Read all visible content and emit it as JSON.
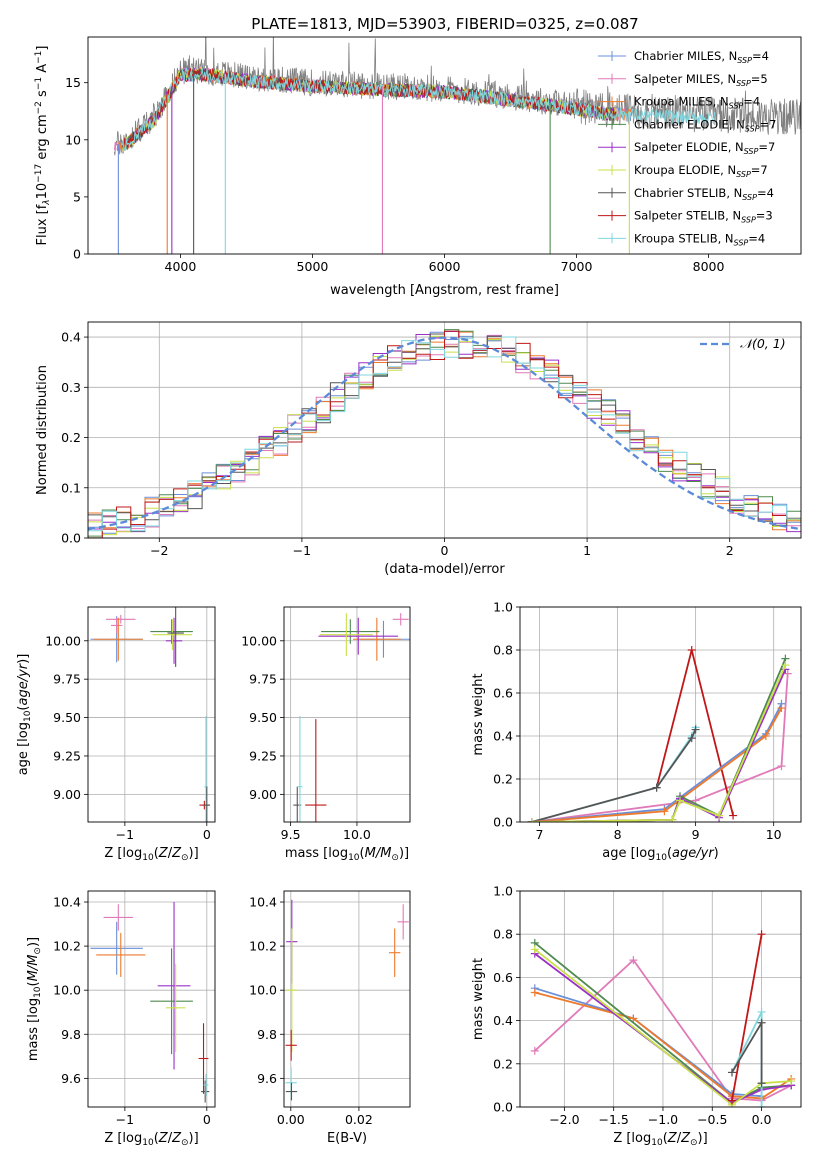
{
  "figure": {
    "title": "PLATE=1813, MJD=53903, FIBERID=0325, z=0.087"
  },
  "models": [
    {
      "name": "Chabrier MILES",
      "nssp": "4",
      "color": "#6a8fd8"
    },
    {
      "name": "Salpeter MILES",
      "nssp": "5",
      "color": "#e07ab8"
    },
    {
      "name": "Kroupa MILES",
      "nssp": "4",
      "color": "#ee7a2c"
    },
    {
      "name": "Chabrier ELODIE",
      "nssp": "7",
      "color": "#4f8a4f"
    },
    {
      "name": "Salpeter ELODIE",
      "nssp": "7",
      "color": "#9b30c8"
    },
    {
      "name": "Kroupa ELODIE",
      "nssp": "7",
      "color": "#c9e04a"
    },
    {
      "name": "Chabrier STELIB",
      "nssp": "4",
      "color": "#555555"
    },
    {
      "name": "Salpeter STELIB",
      "nssp": "3",
      "color": "#c01818"
    },
    {
      "name": "Kroupa STELIB",
      "nssp": "4",
      "color": "#7fd6de"
    }
  ],
  "legend_nssp_label": "N",
  "legend_nssp_sub": "SSP",
  "chart_data": [
    {
      "id": "spectrum",
      "type": "line",
      "xlabel": "wavelength [Angstrom, rest frame]",
      "ylabel": "Flux [f",
      "xlim": [
        3300,
        8700
      ],
      "ylim": [
        0,
        19
      ],
      "xticks": [
        4000,
        5000,
        6000,
        7000,
        8000
      ],
      "yticks": [
        0,
        5,
        10,
        15
      ],
      "legend": "upper right",
      "data_color": "#808080",
      "continuum_x": [
        3500,
        3600,
        3800,
        4000,
        4200,
        4500,
        5000,
        5500,
        6000,
        6500,
        7000,
        7200,
        7400,
        8000,
        8500,
        8700
      ],
      "continuum_y": [
        9.5,
        10.0,
        12.0,
        16.0,
        16.0,
        15.5,
        15.0,
        14.7,
        14.5,
        13.8,
        13.0,
        12.6,
        12.5,
        12.2,
        12.0,
        12.0
      ],
      "absorption_lines_x": [
        3530,
        3900,
        3935,
        4100,
        4340,
        5530,
        6800,
        7400
      ]
    },
    {
      "id": "residual-distribution",
      "type": "histogram",
      "xlabel": "(data-model)/error",
      "ylabel": "Normed distribution",
      "xlim": [
        -2.5,
        2.5
      ],
      "ylim": [
        0,
        0.43
      ],
      "xticks": [
        -2,
        -1,
        0,
        1,
        2
      ],
      "yticks": [
        0.0,
        0.1,
        0.2,
        0.3,
        0.4
      ],
      "grid": true,
      "bins": 50,
      "reference_curve": {
        "label": "𝒩(0, 1)",
        "mean": 0,
        "sigma": 1,
        "style": "dashed",
        "color": "#5b8bd8"
      },
      "legend": "upper right"
    },
    {
      "id": "age-vs-Z",
      "type": "errorbar",
      "xlabel": "Z [log",
      "ylabel": "age  [log",
      "xlim": [
        -1.45,
        0.1
      ],
      "ylim": [
        8.82,
        10.22
      ],
      "xticks": [
        -1,
        0
      ],
      "yticks": [
        9.0,
        9.25,
        9.5,
        9.75,
        10.0
      ],
      "grid": true,
      "points": [
        {
          "model": 0,
          "x": -1.1,
          "y": 10.01,
          "xerr": 0.32,
          "yerr": 0.15
        },
        {
          "model": 1,
          "x": -1.05,
          "y": 10.14,
          "xerr": 0.18,
          "yerr": 0.0
        },
        {
          "model": 1,
          "x": -1.1,
          "y": 10.1,
          "xerr": 0.0,
          "yerr": 0.05
        },
        {
          "model": 2,
          "x": -1.08,
          "y": 10.01,
          "xerr": 0.3,
          "yerr": 0.14
        },
        {
          "model": 3,
          "x": -0.43,
          "y": 10.06,
          "xerr": 0.26,
          "yerr": 0.08
        },
        {
          "model": 4,
          "x": -0.4,
          "y": 10.0,
          "xerr": 0.1,
          "yerr": 0.15
        },
        {
          "model": 5,
          "x": -0.42,
          "y": 10.04,
          "xerr": 0.24,
          "yerr": 0.1
        },
        {
          "model": 6,
          "x": -0.38,
          "y": 10.05,
          "xerr": 0.1,
          "yerr": 0.22
        },
        {
          "model": 7,
          "x": -0.03,
          "y": 8.93,
          "xerr": 0.06,
          "yerr": 0.0
        },
        {
          "model": 8,
          "x": -0.01,
          "y": 9.05,
          "xerr": 0.02,
          "yerr": 0.46
        },
        {
          "model": 6,
          "x": 0.0,
          "y": 8.93,
          "xerr": 0.04,
          "yerr": 0.12
        }
      ]
    },
    {
      "id": "age-vs-mass",
      "type": "errorbar",
      "xlabel": "mass [log",
      "ylabel": "",
      "xlim": [
        9.45,
        10.4
      ],
      "ylim": [
        8.82,
        10.22
      ],
      "xticks": [
        9.5,
        10.0
      ],
      "yticks": [
        9.0,
        9.25,
        9.5,
        9.75,
        10.0
      ],
      "grid": true,
      "points": [
        {
          "model": 0,
          "x": 10.2,
          "y": 10.01,
          "xerr": 0.2,
          "yerr": 0.12
        },
        {
          "model": 1,
          "x": 10.33,
          "y": 10.14,
          "xerr": 0.06,
          "yerr": 0.04
        },
        {
          "model": 2,
          "x": 10.15,
          "y": 10.01,
          "xerr": 0.18,
          "yerr": 0.14
        },
        {
          "model": 3,
          "x": 9.95,
          "y": 10.06,
          "xerr": 0.22,
          "yerr": 0.08
        },
        {
          "model": 4,
          "x": 10.01,
          "y": 10.03,
          "xerr": 0.3,
          "yerr": 0.12
        },
        {
          "model": 5,
          "x": 9.92,
          "y": 10.04,
          "xerr": 0.2,
          "yerr": 0.14
        },
        {
          "model": 6,
          "x": 9.55,
          "y": 8.93,
          "xerr": 0.03,
          "yerr": 0.12
        },
        {
          "model": 7,
          "x": 9.69,
          "y": 8.93,
          "xerr": 0.08,
          "yerr": 0.56
        },
        {
          "model": 8,
          "x": 9.57,
          "y": 9.05,
          "xerr": 0.02,
          "yerr": 0.46
        }
      ]
    },
    {
      "id": "mass-weight-vs-age",
      "type": "line",
      "xlabel": "age  [log",
      "ylabel": "mass weight",
      "xlim": [
        6.75,
        10.35
      ],
      "ylim": [
        0,
        1.0
      ],
      "xticks": [
        7,
        8,
        9,
        10
      ],
      "yticks": [
        0.0,
        0.2,
        0.4,
        0.6,
        0.8,
        1.0
      ],
      "grid": true,
      "series": [
        {
          "model": 1,
          "x": [
            6.9,
            9.0,
            10.1,
            10.18
          ],
          "y": [
            0.0,
            0.1,
            0.26,
            0.69
          ]
        },
        {
          "model": 7,
          "x": [
            8.5,
            8.95,
            9.48
          ],
          "y": [
            0.16,
            0.8,
            0.03
          ]
        },
        {
          "model": 8,
          "x": [
            6.9,
            8.5,
            8.95,
            9.0
          ],
          "y": [
            0.0,
            0.16,
            0.4,
            0.44
          ]
        },
        {
          "model": 6,
          "x": [
            6.9,
            8.5,
            8.95,
            9.0
          ],
          "y": [
            0.0,
            0.16,
            0.39,
            0.43
          ]
        },
        {
          "model": 0,
          "x": [
            6.9,
            8.6,
            9.9,
            10.1
          ],
          "y": [
            0.0,
            0.06,
            0.41,
            0.55
          ]
        },
        {
          "model": 2,
          "x": [
            6.9,
            8.6,
            9.9,
            10.1
          ],
          "y": [
            0.0,
            0.05,
            0.4,
            0.53
          ]
        },
        {
          "model": 3,
          "x": [
            6.9,
            8.7,
            8.8,
            9.3,
            10.15
          ],
          "y": [
            0.0,
            0.01,
            0.12,
            0.03,
            0.76
          ]
        },
        {
          "model": 4,
          "x": [
            6.9,
            8.7,
            8.8,
            9.3,
            10.15
          ],
          "y": [
            0.0,
            0.01,
            0.11,
            0.02,
            0.71
          ]
        },
        {
          "model": 5,
          "x": [
            6.9,
            8.7,
            8.8,
            9.3,
            10.15
          ],
          "y": [
            0.0,
            0.01,
            0.1,
            0.03,
            0.73
          ]
        }
      ]
    },
    {
      "id": "mass-vs-Z",
      "type": "errorbar",
      "xlabel": "Z [log",
      "ylabel": "mass [log",
      "xlim": [
        -1.45,
        0.1
      ],
      "ylim": [
        9.47,
        10.45
      ],
      "xticks": [
        -1,
        0
      ],
      "yticks": [
        9.6,
        9.8,
        10.0,
        10.2,
        10.4
      ],
      "grid": true,
      "points": [
        {
          "model": 0,
          "x": -1.1,
          "y": 10.19,
          "xerr": 0.32,
          "yerr": 0.12
        },
        {
          "model": 1,
          "x": -1.08,
          "y": 10.33,
          "xerr": 0.18,
          "yerr": 0.06
        },
        {
          "model": 2,
          "x": -1.05,
          "y": 10.16,
          "xerr": 0.3,
          "yerr": 0.1
        },
        {
          "model": 3,
          "x": -0.43,
          "y": 9.95,
          "xerr": 0.26,
          "yerr": 0.24
        },
        {
          "model": 4,
          "x": -0.4,
          "y": 10.02,
          "xerr": 0.2,
          "yerr": 0.38
        },
        {
          "model": 5,
          "x": -0.38,
          "y": 9.92,
          "xerr": 0.12,
          "yerr": 0.2
        },
        {
          "model": 6,
          "x": -0.02,
          "y": 9.54,
          "xerr": 0.05,
          "yerr": 0.05
        },
        {
          "model": 7,
          "x": -0.04,
          "y": 9.69,
          "xerr": 0.06,
          "yerr": 0.16
        },
        {
          "model": 8,
          "x": -0.01,
          "y": 9.57,
          "xerr": 0.03,
          "yerr": 0.05
        }
      ]
    },
    {
      "id": "mass-vs-EBV",
      "type": "errorbar",
      "xlabel": "E(B-V)",
      "ylabel": "",
      "xlim": [
        -0.002,
        0.035
      ],
      "ylim": [
        9.47,
        10.45
      ],
      "xticks": [
        0.0,
        0.02
      ],
      "yticks": [
        9.6,
        9.8,
        10.0,
        10.2,
        10.4
      ],
      "grid": true,
      "points": [
        {
          "model": 4,
          "x": 0.0003,
          "y": 10.22,
          "xerr": 0.0,
          "yerr": 0.19
        },
        {
          "model": 5,
          "x": 0.0003,
          "y": 10.0,
          "xerr": 0.0,
          "yerr": 0.28
        },
        {
          "model": 7,
          "x": 0.0001,
          "y": 9.75,
          "xerr": 0.0,
          "yerr": 0.07
        },
        {
          "model": 8,
          "x": 0.0001,
          "y": 9.58,
          "xerr": 0.0,
          "yerr": 0.07
        },
        {
          "model": 6,
          "x": 0.0002,
          "y": 9.54,
          "xerr": 0.0,
          "yerr": 0.04
        },
        {
          "model": 2,
          "x": 0.0305,
          "y": 10.17,
          "xerr": 0.0,
          "yerr": 0.11
        },
        {
          "model": 1,
          "x": 0.033,
          "y": 10.31,
          "xerr": 0.0,
          "yerr": 0.08
        }
      ]
    },
    {
      "id": "mass-weight-vs-Z",
      "type": "line",
      "xlabel": "Z [log",
      "ylabel": "mass weight",
      "xlim": [
        -2.45,
        0.4
      ],
      "ylim": [
        0,
        1.0
      ],
      "xticks": [
        -2.0,
        -1.5,
        -1.0,
        -0.5,
        0.0
      ],
      "yticks": [
        0.0,
        0.2,
        0.4,
        0.6,
        0.8,
        1.0
      ],
      "grid": true,
      "series": [
        {
          "model": 1,
          "x": [
            -2.3,
            -1.3,
            -0.3,
            0.0,
            0.3
          ],
          "y": [
            0.26,
            0.68,
            0.04,
            0.03,
            0.1
          ]
        },
        {
          "model": 0,
          "x": [
            -2.3,
            -1.3,
            -0.3,
            0.0
          ],
          "y": [
            0.55,
            0.41,
            0.06,
            0.05
          ]
        },
        {
          "model": 2,
          "x": [
            -2.3,
            -1.3,
            -0.3,
            0.0,
            0.3
          ],
          "y": [
            0.53,
            0.41,
            0.05,
            0.04,
            0.13
          ]
        },
        {
          "model": 3,
          "x": [
            -2.3,
            -0.3,
            0.0,
            0.3
          ],
          "y": [
            0.76,
            0.02,
            0.09,
            0.1
          ]
        },
        {
          "model": 4,
          "x": [
            -2.3,
            -0.3,
            0.0,
            0.3
          ],
          "y": [
            0.71,
            0.02,
            0.08,
            0.1
          ]
        },
        {
          "model": 5,
          "x": [
            -2.3,
            -0.3,
            0.0,
            0.3
          ],
          "y": [
            0.73,
            0.01,
            0.11,
            0.12
          ]
        },
        {
          "model": 7,
          "x": [
            -0.3,
            0.0
          ],
          "y": [
            0.03,
            0.8
          ]
        },
        {
          "model": 8,
          "x": [
            -0.3,
            0.0,
            0.0
          ],
          "y": [
            0.16,
            0.44,
            0.0
          ]
        },
        {
          "model": 6,
          "x": [
            -0.3,
            0.0,
            0.0
          ],
          "y": [
            0.16,
            0.39,
            0.11
          ]
        }
      ]
    }
  ]
}
